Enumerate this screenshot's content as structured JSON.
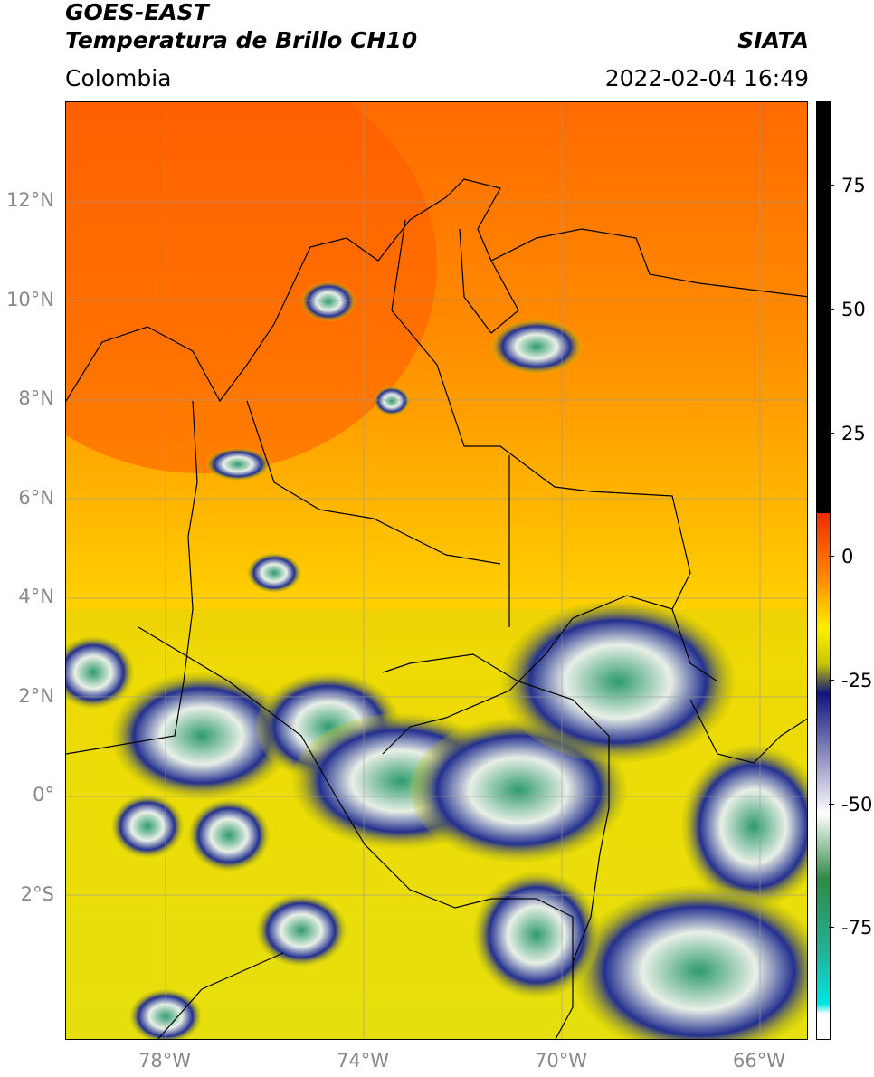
{
  "header": {
    "title_line1": "GOES-EAST",
    "title_line2": "Temperatura de Brillo CH10",
    "agency": "SIATA",
    "region": "Colombia",
    "timestamp": "2022-02-04 16:49"
  },
  "map": {
    "lat_labels": [
      "12°N",
      "10°N",
      "8°N",
      "6°N",
      "4°N",
      "2°N",
      "0°",
      "2°S"
    ],
    "lon_labels": [
      "78°W",
      "74°W",
      "70°W",
      "66°W"
    ],
    "extent": {
      "lon_min": -80,
      "lon_max": -65,
      "lat_min": -5,
      "lat_max": 14
    }
  },
  "colorbar": {
    "tick_labels": [
      "75",
      "50",
      "25",
      "0",
      "-25",
      "-50",
      "-75"
    ],
    "tick_values": [
      75,
      50,
      25,
      0,
      -25,
      -50,
      -75
    ],
    "range": [
      -97,
      90
    ],
    "colors": {
      "warm_black": "#000000",
      "red": "#f02a00",
      "orange": "#ff8a00",
      "yellow": "#ffee00",
      "olive": "#c8c800",
      "navy": "#10147e",
      "white": "#ffffff",
      "green": "#2e8b45",
      "teal": "#22b39a",
      "cyan": "#00e6e6"
    }
  }
}
